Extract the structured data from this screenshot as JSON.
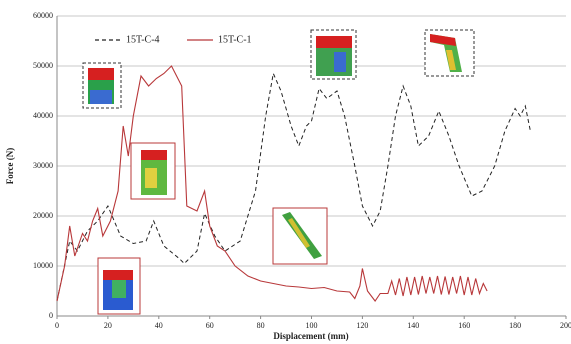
{
  "chart_data": {
    "type": "line",
    "x_label": "Displacement (mm)",
    "y_label": "Force (N)",
    "xlim": [
      0,
      200
    ],
    "xticks": [
      0,
      20,
      40,
      60,
      80,
      100,
      120,
      140,
      160,
      180,
      200
    ],
    "ylim": [
      0,
      60000
    ],
    "yticks": [
      0,
      10000,
      20000,
      30000,
      40000,
      50000,
      60000
    ],
    "grid": true,
    "series": [
      {
        "name": "15T-C-4",
        "color": "#222222",
        "dash": true,
        "x": [
          0,
          5,
          8,
          12,
          16,
          20,
          25,
          30,
          35,
          38,
          42,
          48,
          50,
          55,
          58,
          62,
          66,
          72,
          78,
          82,
          85,
          88,
          92,
          95,
          98,
          100,
          103,
          106,
          110,
          113,
          117,
          120,
          124,
          127,
          130,
          133,
          136,
          139,
          142,
          146,
          150,
          154,
          158,
          163,
          167,
          172,
          176,
          180,
          182,
          184,
          186
        ],
        "values": [
          3000,
          15000,
          13000,
          17000,
          19000,
          22000,
          16000,
          14500,
          15000,
          19000,
          14000,
          11500,
          10500,
          13000,
          20500,
          16000,
          13000,
          15000,
          25000,
          40000,
          48500,
          45000,
          38000,
          34000,
          38000,
          39000,
          45500,
          43500,
          45000,
          40000,
          30000,
          22000,
          18000,
          21000,
          30000,
          40000,
          46000,
          42000,
          34000,
          36000,
          41000,
          36000,
          30000,
          24000,
          25000,
          30000,
          37000,
          41500,
          40000,
          42000,
          37000
        ]
      },
      {
        "name": "15T-C-1",
        "color": "#b8383a",
        "dash": false,
        "x": [
          0,
          3,
          5,
          7,
          9,
          10,
          12,
          14,
          16,
          18,
          21,
          24,
          26,
          28,
          30,
          33,
          36,
          39,
          42,
          45,
          47,
          49,
          51,
          55,
          58,
          60,
          63,
          66,
          70,
          75,
          80,
          85,
          90,
          95,
          100,
          105,
          110,
          115,
          117,
          119,
          120,
          122,
          125,
          127,
          130,
          131.5,
          133,
          134.5,
          136,
          137.5,
          139,
          140.5,
          142,
          143.5,
          145,
          146.5,
          148,
          149.5,
          151,
          152.5,
          154,
          155.5,
          157,
          158.5,
          160,
          161.5,
          163,
          164.5,
          166,
          167.5,
          169
        ],
        "values": [
          3000,
          10000,
          18000,
          12000,
          15000,
          16500,
          15000,
          19000,
          21500,
          16000,
          19000,
          25000,
          38000,
          32000,
          40000,
          48000,
          46000,
          47500,
          48500,
          50000,
          48000,
          46000,
          22000,
          21000,
          25000,
          18000,
          14000,
          13000,
          10000,
          8000,
          7000,
          6500,
          6000,
          5800,
          5500,
          5700,
          5000,
          4800,
          3500,
          6000,
          9500,
          5000,
          3000,
          4500,
          4500,
          7000,
          4200,
          7500,
          4000,
          7800,
          4200,
          7800,
          4300,
          8000,
          4500,
          7800,
          4500,
          8000,
          4300,
          7900,
          4300,
          7800,
          4500,
          8000,
          4200,
          7800,
          4200,
          7500,
          4500,
          6500,
          5000
        ]
      }
    ]
  }
}
